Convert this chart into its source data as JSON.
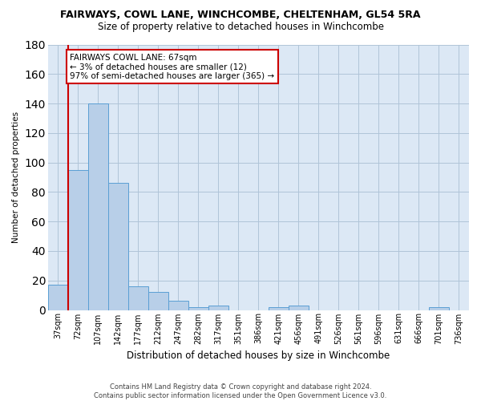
{
  "title": "FAIRWAYS, COWL LANE, WINCHCOMBE, CHELTENHAM, GL54 5RA",
  "subtitle": "Size of property relative to detached houses in Winchcombe",
  "xlabel": "Distribution of detached houses by size in Winchcombe",
  "ylabel": "Number of detached properties",
  "categories": [
    "37sqm",
    "72sqm",
    "107sqm",
    "142sqm",
    "177sqm",
    "212sqm",
    "247sqm",
    "282sqm",
    "317sqm",
    "351sqm",
    "386sqm",
    "421sqm",
    "456sqm",
    "491sqm",
    "526sqm",
    "561sqm",
    "596sqm",
    "631sqm",
    "666sqm",
    "701sqm",
    "736sqm"
  ],
  "values": [
    17,
    95,
    140,
    86,
    16,
    12,
    6,
    2,
    3,
    0,
    0,
    2,
    3,
    0,
    0,
    0,
    0,
    0,
    0,
    2,
    0
  ],
  "bar_color": "#b8cfe8",
  "bar_edge_color": "#5a9fd4",
  "annotation_text": "FAIRWAYS COWL LANE: 67sqm\n← 3% of detached houses are smaller (12)\n97% of semi-detached houses are larger (365) →",
  "annotation_box_color": "#ffffff",
  "annotation_box_edge_color": "#cc0000",
  "vline_color": "#cc0000",
  "ylim": [
    0,
    180
  ],
  "yticks": [
    0,
    20,
    40,
    60,
    80,
    100,
    120,
    140,
    160,
    180
  ],
  "background_color": "#ffffff",
  "plot_bg_color": "#dce8f5",
  "grid_color": "#b0c4d8",
  "footer": "Contains HM Land Registry data © Crown copyright and database right 2024.\nContains public sector information licensed under the Open Government Licence v3.0.",
  "title_fontsize": 9,
  "subtitle_fontsize": 8.5,
  "xlabel_fontsize": 8.5,
  "ylabel_fontsize": 7.5,
  "tick_fontsize": 7,
  "footer_fontsize": 6,
  "annot_fontsize": 7.5
}
